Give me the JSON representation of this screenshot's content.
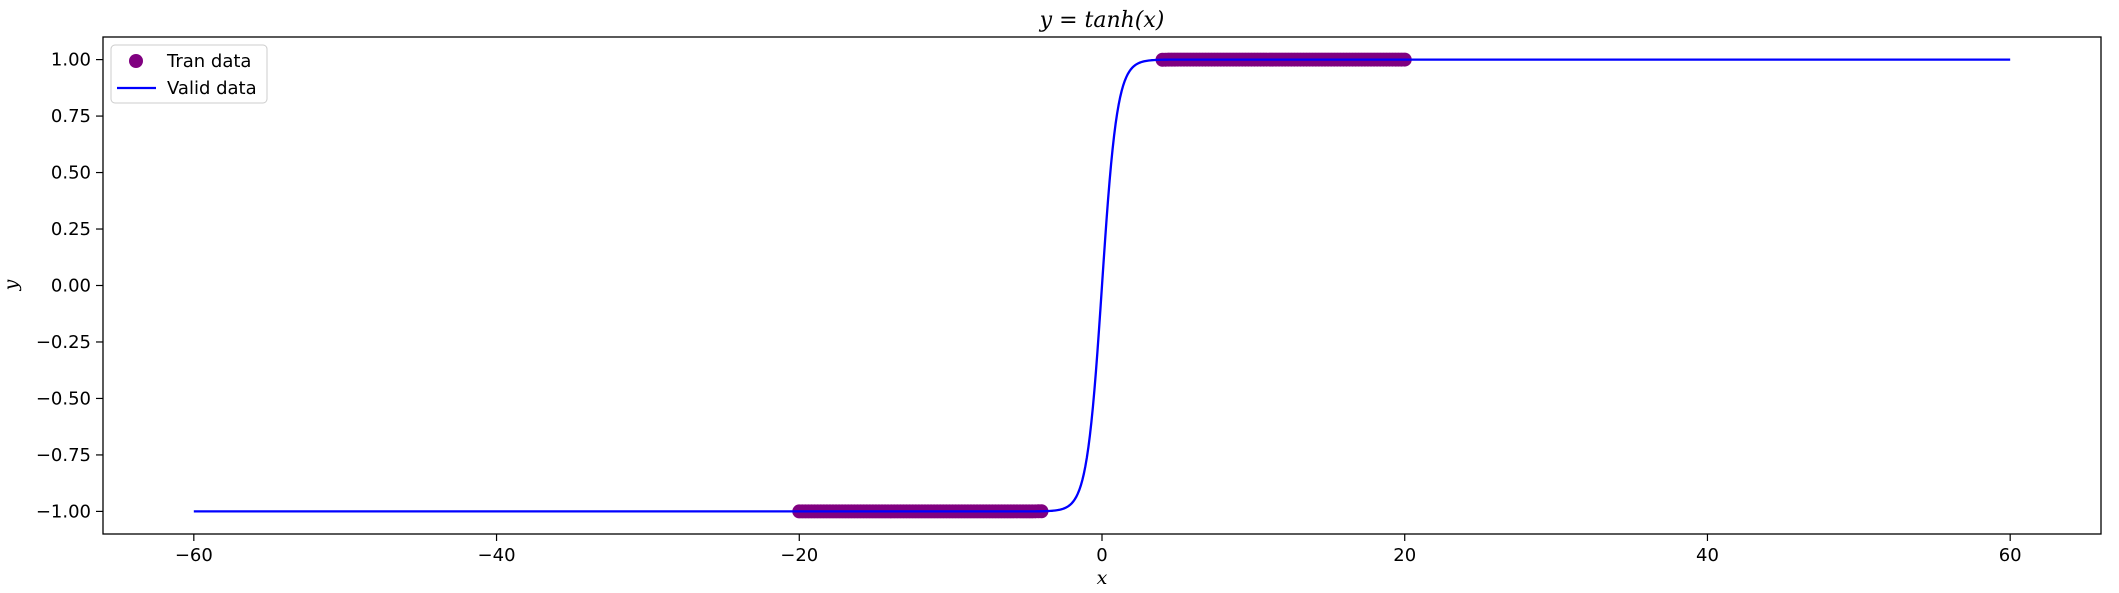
{
  "chart_data": {
    "type": "line",
    "title": "y = tanh(x)",
    "xlabel": "x",
    "ylabel": "y",
    "xlim": [
      -66,
      66
    ],
    "ylim": [
      -1.1,
      1.1
    ],
    "xticks": [
      -60,
      -40,
      -20,
      0,
      20,
      40,
      60
    ],
    "xtick_labels": [
      "−60",
      "−40",
      "−20",
      "0",
      "20",
      "40",
      "60"
    ],
    "yticks": [
      1.0,
      0.75,
      0.5,
      0.25,
      0.0,
      -0.25,
      -0.5,
      -0.75,
      -1.0
    ],
    "ytick_labels": [
      "1.00",
      "0.75",
      "0.50",
      "0.25",
      "0.00",
      "−0.25",
      "−0.50",
      "−0.75",
      "−1.00"
    ],
    "grid": false,
    "legend_position": "top-left",
    "series": [
      {
        "name": "Tran data",
        "kind": "scatter",
        "color": "#800080",
        "function": "tanh",
        "x_ranges": [
          [
            -20,
            -4
          ],
          [
            4,
            20
          ]
        ]
      },
      {
        "name": "Valid data",
        "kind": "line",
        "color": "#0000ff",
        "function": "tanh",
        "x_range": [
          -60,
          60
        ]
      }
    ]
  }
}
